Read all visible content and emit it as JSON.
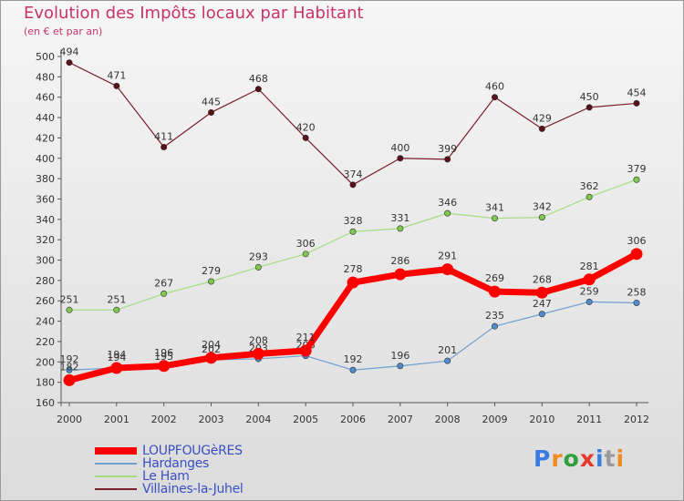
{
  "header": {
    "title": "Evolution des Impôts locaux par Habitant",
    "subtitle": "(en € et par an)"
  },
  "logo": {
    "text": "Proxiti",
    "colors": [
      "#3a7be0",
      "#f08c1e",
      "#2f9e3c",
      "#e8382d",
      "#3a7be0",
      "#9a9a9a",
      "#f08c1e"
    ]
  },
  "chart_data": {
    "type": "line",
    "title": "Evolution des Impôts locaux par Habitant",
    "subtitle": "(en € et par an)",
    "x": [
      "2000",
      "2001",
      "2002",
      "2003",
      "2004",
      "2005",
      "2006",
      "2007",
      "2008",
      "2009",
      "2010",
      "2011",
      "2012"
    ],
    "ylim": [
      160,
      500
    ],
    "yticks": [
      160,
      180,
      200,
      220,
      240,
      260,
      280,
      300,
      320,
      340,
      360,
      380,
      400,
      420,
      440,
      460,
      480,
      500
    ],
    "grid": false,
    "legend_position": "bottom-left",
    "series": [
      {
        "name": "Villaines-la-Juhel",
        "color": "#7a1f2a",
        "marker": "#5a1018",
        "width": 1.2,
        "values": [
          494,
          471,
          411,
          445,
          468,
          420,
          374,
          400,
          399,
          460,
          429,
          450,
          454
        ],
        "labels": [
          "494",
          "471",
          "411",
          "445",
          "468",
          "420",
          "374",
          "400",
          "399",
          "460",
          "429",
          "450",
          "454"
        ]
      },
      {
        "name": "Le Ham",
        "color": "#a6dc80",
        "marker": "#7ec850",
        "width": 1.2,
        "values": [
          251,
          251,
          267,
          279,
          293,
          306,
          328,
          331,
          346,
          341,
          342,
          362,
          379
        ],
        "labels": [
          "251",
          "251",
          "267",
          "279",
          "293",
          "306",
          "328",
          "331",
          "346",
          "341",
          "342",
          "362",
          "379"
        ]
      },
      {
        "name": "Hardanges",
        "color": "#6f9fcf",
        "marker": "#4e8ccc",
        "width": 1.2,
        "values": [
          192,
          194,
          195,
          202,
          203,
          206,
          192,
          196,
          201,
          235,
          247,
          259,
          258
        ],
        "labels": [
          "192",
          "194",
          "195",
          "202",
          "203",
          "206",
          "192",
          "196",
          "201",
          "235",
          "247",
          "259",
          "258"
        ]
      },
      {
        "name": "LOUPFOUGèRES",
        "color": "#ff0000",
        "marker": "#ff0000",
        "width": 7,
        "values": [
          182,
          194,
          196,
          204,
          208,
          211,
          278,
          286,
          291,
          269,
          268,
          281,
          306
        ],
        "labels": [
          "182",
          "194",
          "196",
          "204",
          "208",
          "211",
          "278",
          "286",
          "291",
          "269",
          "268",
          "281",
          "306"
        ]
      }
    ],
    "legend": [
      {
        "name": "LOUPFOUGèRES",
        "color": "#ff0000",
        "thickness": 8
      },
      {
        "name": "Hardanges",
        "color": "#6f9fcf",
        "thickness": 2
      },
      {
        "name": "Le Ham",
        "color": "#a6dc80",
        "thickness": 2
      },
      {
        "name": "Villaines-la-Juhel",
        "color": "#7a1f2a",
        "thickness": 2
      }
    ]
  }
}
